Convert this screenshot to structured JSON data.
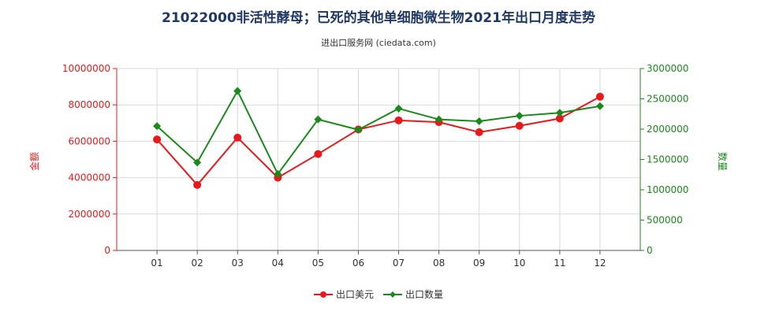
{
  "title": "21022000非活性酵母；已死的其他单细胞微生物2021年出口月度走势",
  "subtitle": "进出口服务网 (ciedata.com)",
  "colors": {
    "value": "#e8191a",
    "quantity": "#1a8a1a",
    "axis_left": "#e8191a",
    "axis_right": "#1a8a1a"
  },
  "chart_data": {
    "type": "line",
    "categories": [
      "01",
      "02",
      "03",
      "04",
      "05",
      "06",
      "07",
      "08",
      "09",
      "10",
      "11",
      "12"
    ],
    "y_left": {
      "label": "金额",
      "min": 0,
      "max": 10000000,
      "ticks": [
        "0",
        "2000000",
        "4000000",
        "6000000",
        "8000000",
        "10000000"
      ]
    },
    "y_right": {
      "label": "数量",
      "min": 0,
      "max": 3000000,
      "ticks": [
        "0",
        "500000",
        "1000000",
        "1500000",
        "2000000",
        "2500000",
        "3000000"
      ]
    },
    "series": [
      {
        "name": "出口美元",
        "axis": "left",
        "values": [
          6100000,
          3600000,
          6200000,
          4000000,
          5300000,
          6650000,
          7150000,
          7050000,
          6500000,
          6850000,
          7250000,
          8450000
        ]
      },
      {
        "name": "出口数量",
        "axis": "right",
        "values": [
          2050000,
          1450000,
          2630000,
          1260000,
          2160000,
          1990000,
          2340000,
          2160000,
          2130000,
          2220000,
          2270000,
          2380000
        ]
      }
    ],
    "legend": [
      "出口美元",
      "出口数量"
    ],
    "legend_position": "bottom"
  }
}
